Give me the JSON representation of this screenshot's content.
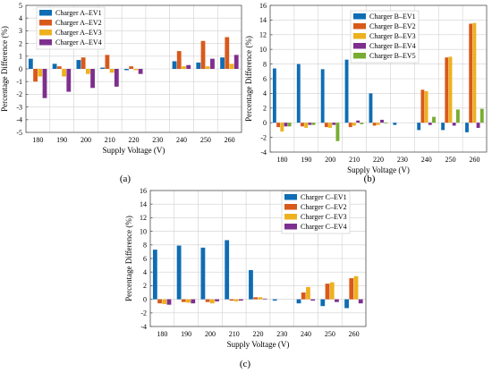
{
  "figure": {
    "title": ""
  },
  "chart_data": [
    {
      "type": "bar",
      "panel_label": "(a)",
      "xlabel": "Supply Voltage (V)",
      "ylabel": "Percentage Difference (%)",
      "ylim": [
        -5,
        5
      ],
      "yticks": [
        -5,
        -4,
        -3,
        -2,
        -1,
        0,
        1,
        2,
        3,
        4,
        5
      ],
      "grid": true,
      "legend_position": "top-left",
      "categories": [
        "180",
        "190",
        "200",
        "210",
        "220",
        "230",
        "240",
        "250",
        "260"
      ],
      "series": [
        {
          "name": "Charger A–EV1",
          "color": "#0e6db4",
          "values": [
            0.8,
            0.4,
            0.7,
            0.1,
            -0.1,
            0,
            0.6,
            0.5,
            0.9
          ]
        },
        {
          "name": "Charger A–EV2",
          "color": "#d85a1b",
          "values": [
            -1.0,
            0.2,
            0.9,
            1.1,
            0.2,
            0,
            1.4,
            2.2,
            2.5
          ]
        },
        {
          "name": "Charger A–EV3",
          "color": "#edb120",
          "values": [
            -0.6,
            -0.6,
            -0.4,
            -0.3,
            -0.1,
            0,
            0.2,
            0.2,
            0.4
          ]
        },
        {
          "name": "Charger A–EV4",
          "color": "#7e2f8e",
          "values": [
            -2.3,
            -1.8,
            -1.5,
            -1.4,
            -0.4,
            0,
            0.3,
            0.8,
            1.1
          ]
        }
      ]
    },
    {
      "type": "bar",
      "panel_label": "(b)",
      "xlabel": "Supply Voltage (V)",
      "ylabel": "Percentage Difference (%)",
      "ylim": [
        -4,
        16
      ],
      "yticks": [
        -4,
        -2,
        0,
        2,
        4,
        6,
        8,
        10,
        12,
        14,
        16
      ],
      "grid": true,
      "legend_position": "top-left",
      "categories": [
        "180",
        "190",
        "200",
        "210",
        "220",
        "230",
        "240",
        "250",
        "260"
      ],
      "series": [
        {
          "name": "Charger B–EV1",
          "color": "#0e6db4",
          "values": [
            7.4,
            8.0,
            7.3,
            8.6,
            4.0,
            -0.3,
            -1.0,
            -1.0,
            -1.3
          ]
        },
        {
          "name": "Charger B–EV2",
          "color": "#d85a1b",
          "values": [
            -0.6,
            -0.5,
            -0.6,
            -0.6,
            -0.4,
            0,
            4.5,
            8.9,
            13.5
          ]
        },
        {
          "name": "Charger B–EV3",
          "color": "#edb120",
          "values": [
            -1.2,
            -0.7,
            -0.7,
            -0.4,
            -0.3,
            0,
            4.3,
            9.0,
            13.6
          ]
        },
        {
          "name": "Charger B–EV4",
          "color": "#7e2f8e",
          "values": [
            -0.5,
            -0.3,
            -0.3,
            0.3,
            0.4,
            0,
            -0.3,
            -0.4,
            -0.7
          ]
        },
        {
          "name": "Charger B–EV5",
          "color": "#77ac30",
          "values": [
            -0.5,
            -0.3,
            -2.5,
            -0.2,
            -0.1,
            0,
            0.8,
            1.8,
            1.9
          ]
        }
      ]
    },
    {
      "type": "bar",
      "panel_label": "(c)",
      "xlabel": "Supply Voltage (V)",
      "ylabel": "Percentage Difference (%)",
      "ylim": [
        -4,
        16
      ],
      "yticks": [
        -4,
        -2,
        0,
        2,
        4,
        6,
        8,
        10,
        12,
        14,
        16
      ],
      "grid": true,
      "legend_position": "top-right",
      "categories": [
        "180",
        "190",
        "200",
        "210",
        "220",
        "230",
        "240",
        "250",
        "260"
      ],
      "series": [
        {
          "name": "Charger C–EV1",
          "color": "#0e6db4",
          "values": [
            7.3,
            7.9,
            7.6,
            8.7,
            4.3,
            -0.2,
            -0.6,
            -1.0,
            -1.3
          ]
        },
        {
          "name": "Charger C–EV2",
          "color": "#d85a1b",
          "values": [
            -0.6,
            -0.4,
            -0.4,
            -0.2,
            0.3,
            0,
            1.0,
            2.3,
            3.1
          ]
        },
        {
          "name": "Charger C–EV3",
          "color": "#edb120",
          "values": [
            -0.7,
            -0.5,
            -0.6,
            -0.3,
            0.3,
            0,
            1.8,
            2.5,
            3.4
          ]
        },
        {
          "name": "Charger C–EV4",
          "color": "#7e2f8e",
          "values": [
            -0.8,
            -0.6,
            -0.3,
            -0.2,
            0.1,
            0,
            -0.2,
            -0.4,
            -0.6
          ]
        }
      ]
    }
  ]
}
